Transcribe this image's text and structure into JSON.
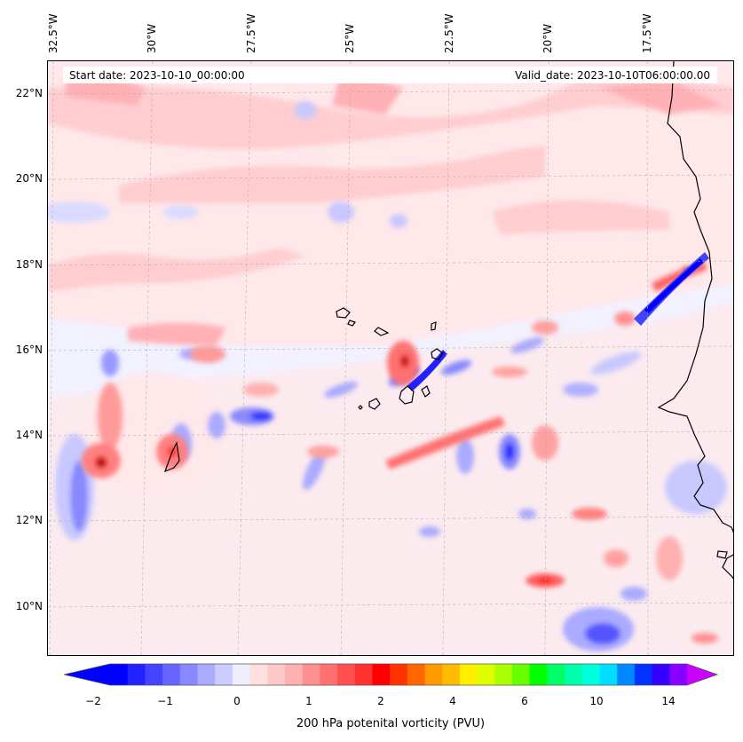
{
  "map": {
    "start_label": "Start date: 2023-10-10_00:00:00",
    "valid_label": "Valid_date: 2023-10-10T06:00:00.00",
    "lon_labels": [
      "32.5°W",
      "30°W",
      "27.5°W",
      "25°W",
      "22.5°W",
      "20°W",
      "17.5°W"
    ],
    "lat_labels": [
      "22°N",
      "20°N",
      "18°N",
      "16°N",
      "14°N",
      "12°N",
      "10°N"
    ],
    "colors": {
      "coastline": "#000000",
      "gridline": "#b0b0b0",
      "background": "#f1f1ff"
    }
  },
  "colorbar": {
    "label": "200 hPa potenital vorticity (PVU)",
    "tick_labels": [
      "−2",
      "−1",
      "0",
      "1",
      "2",
      "4",
      "6",
      "10",
      "14"
    ],
    "colors": [
      "#0000ff",
      "#2222ff",
      "#4444ff",
      "#6666ff",
      "#8888ff",
      "#aaaaff",
      "#ccccff",
      "#eeeeff",
      "#ffe0e0",
      "#ffc8c8",
      "#ffb0b0",
      "#ff9090",
      "#ff7070",
      "#ff5050",
      "#ff3030",
      "#ff0000",
      "#ff3300",
      "#ff6600",
      "#ff9900",
      "#ffbb00",
      "#ffee00",
      "#ddff00",
      "#aaff00",
      "#66ff00",
      "#00ff00",
      "#00ff66",
      "#00ffaa",
      "#00ffdd",
      "#00ddff",
      "#0088ff",
      "#0033ff",
      "#3300ff",
      "#8800ff"
    ],
    "extend_low": "#0000ff",
    "extend_high": "#cc00ff"
  }
}
